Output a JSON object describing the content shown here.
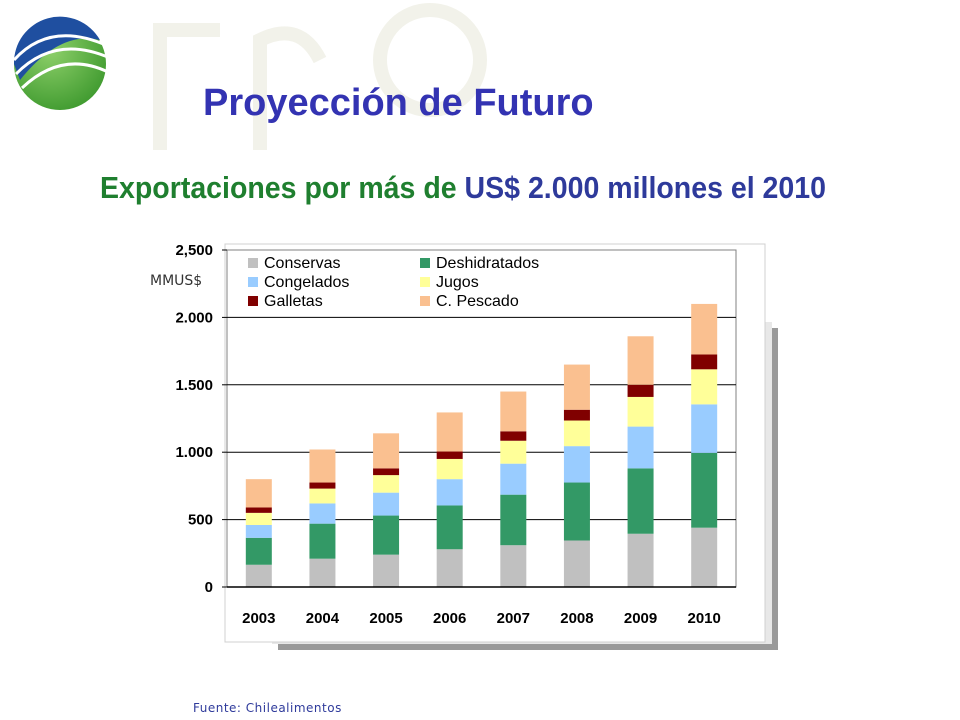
{
  "slide": {
    "title": "Proyección de Futuro",
    "subtitle_part1": "Exportaciones por más de ",
    "subtitle_part2": "US$ 2.000 millones el 2010",
    "source": "Fuente: Chilealimentos"
  },
  "colors": {
    "title": "#3333b2",
    "subtitle_green": "#1f7f2f",
    "subtitle_blue": "#2e3a9b"
  },
  "chart_data": {
    "type": "bar",
    "stacked": true,
    "ylabel": "MMUS$",
    "ylim": [
      0,
      2500
    ],
    "yticks": [
      0,
      500,
      1000,
      1500,
      2000,
      2500
    ],
    "ytick_labels": [
      "0",
      "500",
      "1.000",
      "1.500",
      "2.000",
      "2,500"
    ],
    "categories": [
      "2003",
      "2004",
      "2005",
      "2006",
      "2007",
      "2008",
      "2009",
      "2010"
    ],
    "grid": true,
    "legend_position": "top",
    "series": [
      {
        "name": "Conservas",
        "color": "#c0c0c0",
        "values": [
          165,
          210,
          240,
          280,
          310,
          345,
          395,
          440
        ]
      },
      {
        "name": "Deshidratados",
        "color": "#339966",
        "values": [
          200,
          260,
          290,
          325,
          375,
          430,
          485,
          555
        ]
      },
      {
        "name": "Congelados",
        "color": "#99ccff",
        "values": [
          95,
          150,
          170,
          195,
          230,
          270,
          310,
          360
        ]
      },
      {
        "name": "Jugos",
        "color": "#ffff99",
        "values": [
          90,
          110,
          130,
          150,
          170,
          190,
          220,
          260
        ]
      },
      {
        "name": "Galletas",
        "color": "#800000",
        "values": [
          40,
          45,
          50,
          55,
          70,
          80,
          90,
          110
        ]
      },
      {
        "name": "C. Pescado",
        "color": "#fac090",
        "values": [
          210,
          245,
          260,
          290,
          295,
          335,
          360,
          375
        ]
      }
    ]
  }
}
